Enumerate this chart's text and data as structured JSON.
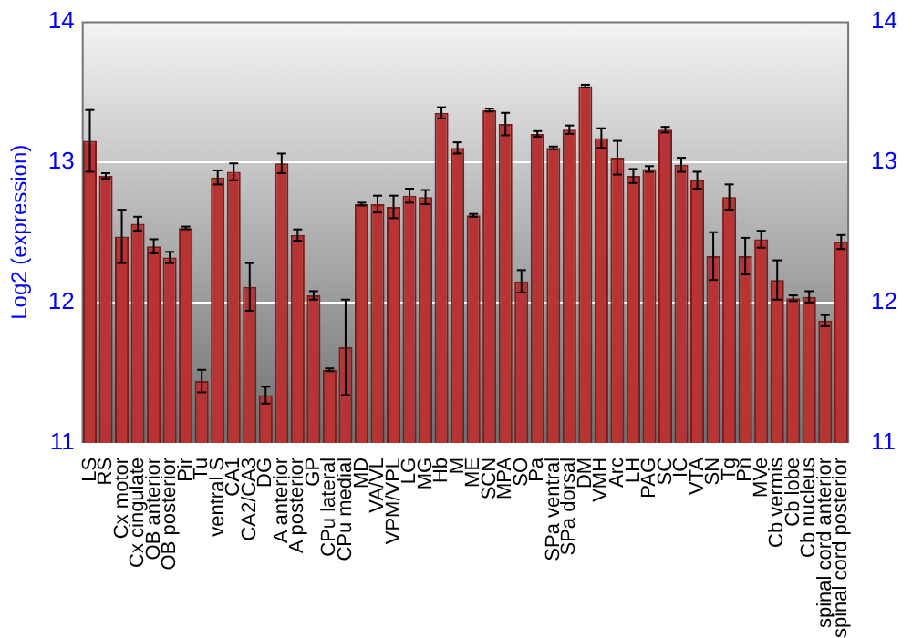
{
  "chart_data": {
    "type": "bar",
    "ylabel": "Log2 (expression)",
    "categories": [
      "LS",
      "RS",
      "Cx motor",
      "Cx cingulate",
      "OB anterior",
      "OB posterior",
      "Pir",
      "Tu",
      "ventral S",
      "CA1",
      "CA2/CA3",
      "DG",
      "A anterior",
      "A posterior",
      "GP",
      "CPu lateral",
      "CPu medial",
      "MD",
      "VA/VL",
      "VPM/VPL",
      "LG",
      "MG",
      "Hb",
      "M",
      "ME",
      "SCN",
      "MPA",
      "SO",
      "Pa",
      "SPa ventral",
      "SPa dorsal",
      "DM",
      "VMH",
      "Arc",
      "LH",
      "PAG",
      "SC",
      "IC",
      "VTA",
      "SN",
      "Tg",
      "Pn",
      "MVe",
      "Cb vermis",
      "Cb lobe",
      "Cb nucleus",
      "spinal cord anterior",
      "spinal cord posterior"
    ],
    "values": [
      13.15,
      12.9,
      12.47,
      12.56,
      12.4,
      12.32,
      12.53,
      11.44,
      12.89,
      12.93,
      12.11,
      11.34,
      12.99,
      12.48,
      12.05,
      11.52,
      11.68,
      12.7,
      12.7,
      12.68,
      12.76,
      12.75,
      13.35,
      13.1,
      12.62,
      13.37,
      13.27,
      12.15,
      13.2,
      13.1,
      13.23,
      13.54,
      13.17,
      13.03,
      12.9,
      12.95,
      13.23,
      12.98,
      12.87,
      12.33,
      12.75,
      12.33,
      12.45,
      12.16,
      12.03,
      12.04,
      11.87,
      12.43
    ],
    "errors": [
      0.22,
      0.02,
      0.19,
      0.05,
      0.05,
      0.04,
      0.01,
      0.08,
      0.05,
      0.06,
      0.17,
      0.06,
      0.07,
      0.04,
      0.03,
      0.01,
      0.34,
      0.01,
      0.06,
      0.08,
      0.05,
      0.05,
      0.04,
      0.04,
      0.01,
      0.01,
      0.08,
      0.08,
      0.02,
      0.01,
      0.03,
      0.01,
      0.07,
      0.12,
      0.05,
      0.02,
      0.02,
      0.05,
      0.06,
      0.17,
      0.09,
      0.13,
      0.06,
      0.14,
      0.02,
      0.04,
      0.04,
      0.05
    ],
    "color": "#b83434",
    "ylim": [
      11,
      14
    ],
    "yticks": [
      11,
      12,
      13,
      14
    ],
    "y2lim": [
      11,
      14
    ],
    "y2ticks": [
      11,
      12,
      13,
      14
    ],
    "grid": "y",
    "legend": false
  }
}
